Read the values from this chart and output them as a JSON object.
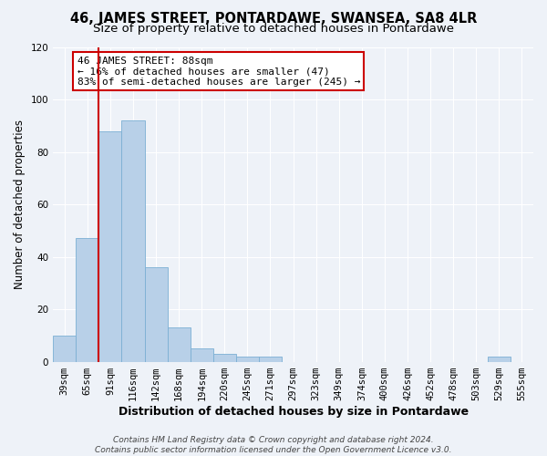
{
  "title": "46, JAMES STREET, PONTARDAWE, SWANSEA, SA8 4LR",
  "subtitle": "Size of property relative to detached houses in Pontardawe",
  "xlabel": "Distribution of detached houses by size in Pontardawe",
  "ylabel": "Number of detached properties",
  "bar_values": [
    10,
    47,
    88,
    92,
    36,
    13,
    5,
    3,
    2,
    2,
    0,
    0,
    0,
    0,
    0,
    0,
    0,
    0,
    0,
    2,
    0
  ],
  "bin_labels": [
    "39sqm",
    "65sqm",
    "91sqm",
    "116sqm",
    "142sqm",
    "168sqm",
    "194sqm",
    "220sqm",
    "245sqm",
    "271sqm",
    "297sqm",
    "323sqm",
    "349sqm",
    "374sqm",
    "400sqm",
    "426sqm",
    "452sqm",
    "478sqm",
    "503sqm",
    "529sqm",
    "555sqm"
  ],
  "bar_color": "#b8d0e8",
  "bar_edge_color": "#7bafd4",
  "vline_color": "#cc0000",
  "vline_x_index": 2,
  "annotation_text_line1": "46 JAMES STREET: 88sqm",
  "annotation_text_line2": "← 16% of detached houses are smaller (47)",
  "annotation_text_line3": "83% of semi-detached houses are larger (245) →",
  "box_edge_color": "#cc0000",
  "ylim": [
    0,
    120
  ],
  "yticks": [
    0,
    20,
    40,
    60,
    80,
    100,
    120
  ],
  "footer_line1": "Contains HM Land Registry data © Crown copyright and database right 2024.",
  "footer_line2": "Contains public sector information licensed under the Open Government Licence v3.0.",
  "background_color": "#eef2f8",
  "grid_color": "#ffffff",
  "title_fontsize": 10.5,
  "subtitle_fontsize": 9.5,
  "xlabel_fontsize": 9,
  "ylabel_fontsize": 8.5,
  "footer_fontsize": 6.5,
  "tick_fontsize": 7.5,
  "annot_fontsize": 8
}
